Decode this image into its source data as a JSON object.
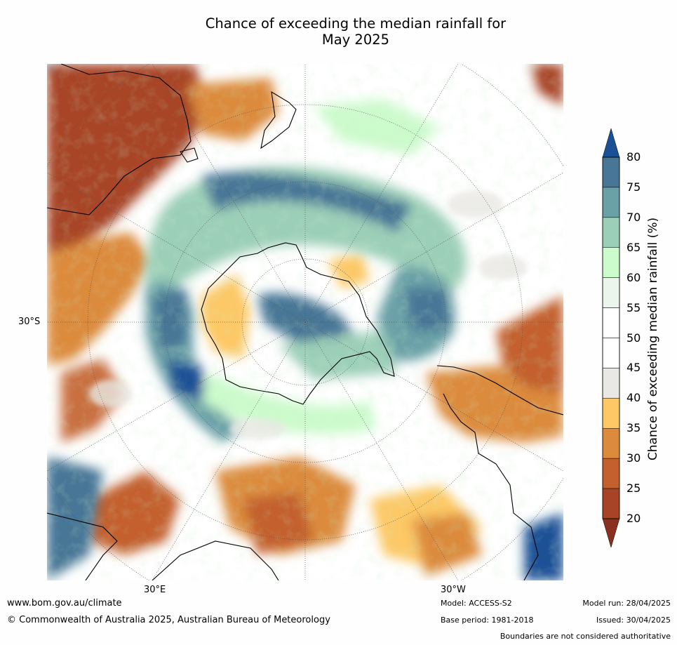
{
  "title_line1": "Chance of exceeding the median rainfall for",
  "title_line2": "May 2025",
  "map_labels": {
    "lat_30s": "30°S",
    "lon_30e": "30°E",
    "lon_30w": "30°W"
  },
  "colorbar": {
    "title": "Chance of exceeding median rainfall (%)",
    "ticks": [
      "80",
      "75",
      "70",
      "65",
      "60",
      "55",
      "50",
      "45",
      "40",
      "35",
      "30",
      "25",
      "20"
    ],
    "colors": [
      "#1a5196",
      "#477696",
      "#6aa1a7",
      "#9ccfb8",
      "#ccfbcc",
      "#ecf5ec",
      "#ffffff",
      "#ffffff",
      "#eae8e4",
      "#fdc865",
      "#dc8b3d",
      "#c3602e",
      "#a74425",
      "#8a3020"
    ],
    "extend_top_color": "#1a5196",
    "extend_bottom_color": "#8a3020"
  },
  "footer": {
    "website": "www.bom.gov.au/climate",
    "copyright": "© Commonwealth of Australia 2025, Australian Bureau of Meteorology",
    "model": "Model: ACCESS-S2",
    "base_period": "Base period: 1981-2018",
    "model_run": "Model run: 28/04/2025",
    "issued": "Issued: 30/04/2025",
    "boundaries": "Boundaries are not considered authoritative"
  }
}
